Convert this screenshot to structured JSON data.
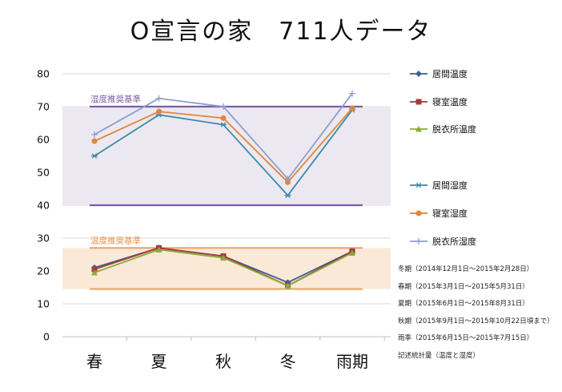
{
  "title": "O宣言の家　711人データ",
  "chart_data": {
    "type": "line",
    "categories": [
      "春",
      "夏",
      "秋",
      "冬",
      "雨期"
    ],
    "ylim": [
      0,
      80
    ],
    "yticks": [
      0,
      10,
      20,
      30,
      40,
      50,
      60,
      70,
      80
    ],
    "bands": [
      {
        "label": "湿度推奨基準",
        "from": 40,
        "to": 70,
        "fill": "#ece8f1",
        "line": "#7a5ea6",
        "label_color": "#7a5ea6"
      },
      {
        "label": "温度推奨基準",
        "from": 14.5,
        "to": 27,
        "fill": "#fbe9d8",
        "line": "#f0a464",
        "label_color": "#e8954e"
      }
    ],
    "series": [
      {
        "name": "居間温度",
        "marker": "diamond",
        "color": "#3f5f93",
        "values": [
          21,
          27,
          24.5,
          16.5,
          26
        ]
      },
      {
        "name": "寝室温度",
        "marker": "square",
        "color": "#a63a3a",
        "values": [
          20.5,
          27,
          24.5,
          15.5,
          26
        ]
      },
      {
        "name": "脱衣所温度",
        "marker": "triangle",
        "color": "#8bab3a",
        "values": [
          19.5,
          26.5,
          24,
          15.5,
          25.5
        ]
      },
      {
        "name": "居間湿度",
        "marker": "star",
        "color": "#3d8aa4",
        "values": [
          55,
          67.5,
          64.5,
          43,
          69
        ]
      },
      {
        "name": "寝室湿度",
        "marker": "circle",
        "color": "#e0853c",
        "values": [
          59.5,
          68.5,
          66.5,
          47,
          69.5
        ]
      },
      {
        "name": "脱衣所湿度",
        "marker": "plus",
        "color": "#8d9fcd",
        "values": [
          61.5,
          72.5,
          70,
          48,
          74
        ]
      }
    ]
  },
  "notes": [
    "冬期（2014年12月1日～2015年2月28日）",
    "春期（2015年3月1日～2015年5月31日）",
    "夏期（2015年6月1日～2015年8月31日）",
    "秋期（2015年9月1日～2015年10月22日頃まで）",
    "雨季（2015年6月15日～2015年7月15日）",
    "記述統計量（温度と湿度）"
  ]
}
